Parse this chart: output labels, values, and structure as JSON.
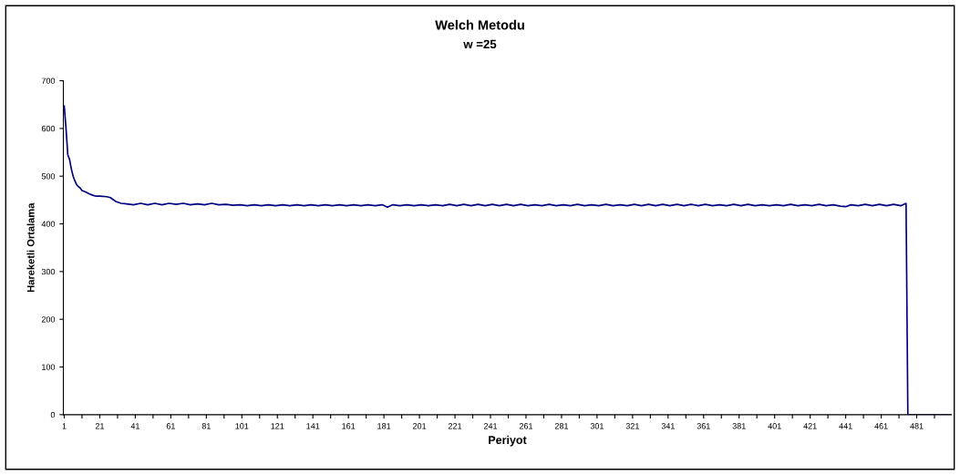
{
  "chart_data": {
    "type": "line",
    "title": "Welch Metodu",
    "subtitle": "w =25",
    "xlabel": "Periyot",
    "ylabel": "Hareketli Ortalama",
    "xlim": [
      0.5,
      500.5
    ],
    "xticks": [
      1,
      {
        "value": 11,
        "label": null
      },
      21,
      {
        "value": 31,
        "label": null
      },
      41,
      {
        "value": 51,
        "label": null
      },
      61,
      {
        "value": 71,
        "label": null
      },
      81,
      {
        "value": 91,
        "label": null
      },
      101,
      {
        "value": 111,
        "label": null
      },
      121,
      {
        "value": 131,
        "label": null
      },
      141,
      {
        "value": 151,
        "label": null
      },
      161,
      {
        "value": 171,
        "label": null
      },
      181,
      {
        "value": 191,
        "label": null
      },
      201,
      {
        "value": 211,
        "label": null
      },
      221,
      {
        "value": 231,
        "label": null
      },
      241,
      {
        "value": 251,
        "label": null
      },
      261,
      {
        "value": 271,
        "label": null
      },
      281,
      {
        "value": 291,
        "label": null
      },
      301,
      {
        "value": 311,
        "label": null
      },
      321,
      {
        "value": 331,
        "label": null
      },
      341,
      {
        "value": 351,
        "label": null
      },
      361,
      {
        "value": 371,
        "label": null
      },
      381,
      {
        "value": 391,
        "label": null
      },
      401,
      {
        "value": 411,
        "label": null
      },
      421,
      {
        "value": 431,
        "label": null
      },
      441,
      {
        "value": 451,
        "label": null
      },
      461,
      {
        "value": 471,
        "label": null
      },
      481,
      {
        "value": 491,
        "label": null
      }
    ],
    "ylim": [
      0,
      700
    ],
    "yticks": [
      0,
      100,
      200,
      300,
      400,
      500,
      600,
      700
    ],
    "grid": false,
    "legend": false,
    "marker": "none",
    "line_style": "solid",
    "series": [
      {
        "color": "#000080",
        "x": [
          1,
          2,
          3,
          4,
          5,
          6,
          7,
          8,
          9,
          10,
          11,
          13,
          15,
          17,
          19,
          21,
          25,
          27,
          30,
          33,
          36,
          40,
          44,
          48,
          52,
          56,
          60,
          64,
          68,
          72,
          76,
          80,
          84,
          88,
          92,
          96,
          100,
          104,
          108,
          112,
          116,
          120,
          124,
          128,
          132,
          136,
          140,
          144,
          148,
          152,
          156,
          160,
          164,
          168,
          172,
          176,
          180,
          183,
          186,
          190,
          194,
          198,
          202,
          206,
          210,
          214,
          218,
          222,
          226,
          230,
          234,
          238,
          242,
          246,
          250,
          254,
          258,
          262,
          266,
          270,
          274,
          278,
          282,
          286,
          290,
          294,
          298,
          302,
          306,
          310,
          314,
          318,
          322,
          326,
          330,
          334,
          338,
          342,
          346,
          350,
          354,
          358,
          362,
          366,
          370,
          374,
          378,
          382,
          386,
          390,
          394,
          398,
          402,
          406,
          410,
          414,
          418,
          422,
          426,
          430,
          434,
          438,
          441,
          444,
          448,
          452,
          456,
          460,
          464,
          468,
          472,
          475,
          476,
          500
        ],
        "values": [
          647,
          600,
          545,
          535,
          515,
          500,
          490,
          482,
          478,
          475,
          470,
          467,
          463,
          460,
          458,
          458,
          457,
          455,
          447,
          443,
          442,
          440,
          443,
          440,
          443,
          440,
          443,
          441,
          443,
          440,
          442,
          440,
          443,
          440,
          441,
          439,
          440,
          438,
          440,
          438,
          440,
          438,
          440,
          438,
          440,
          438,
          440,
          438,
          440,
          438,
          440,
          438,
          440,
          438,
          440,
          438,
          440,
          435,
          440,
          438,
          440,
          438,
          440,
          438,
          440,
          438,
          441,
          438,
          441,
          438,
          441,
          438,
          441,
          438,
          441,
          438,
          441,
          438,
          440,
          438,
          441,
          438,
          440,
          438,
          441,
          438,
          440,
          438,
          441,
          438,
          440,
          438,
          441,
          438,
          441,
          438,
          441,
          438,
          441,
          438,
          441,
          438,
          441,
          438,
          440,
          438,
          441,
          438,
          441,
          438,
          440,
          438,
          440,
          438,
          441,
          438,
          440,
          438,
          441,
          438,
          440,
          437,
          436,
          440,
          438,
          441,
          438,
          441,
          438,
          441,
          438,
          443,
          0,
          0
        ]
      }
    ]
  }
}
